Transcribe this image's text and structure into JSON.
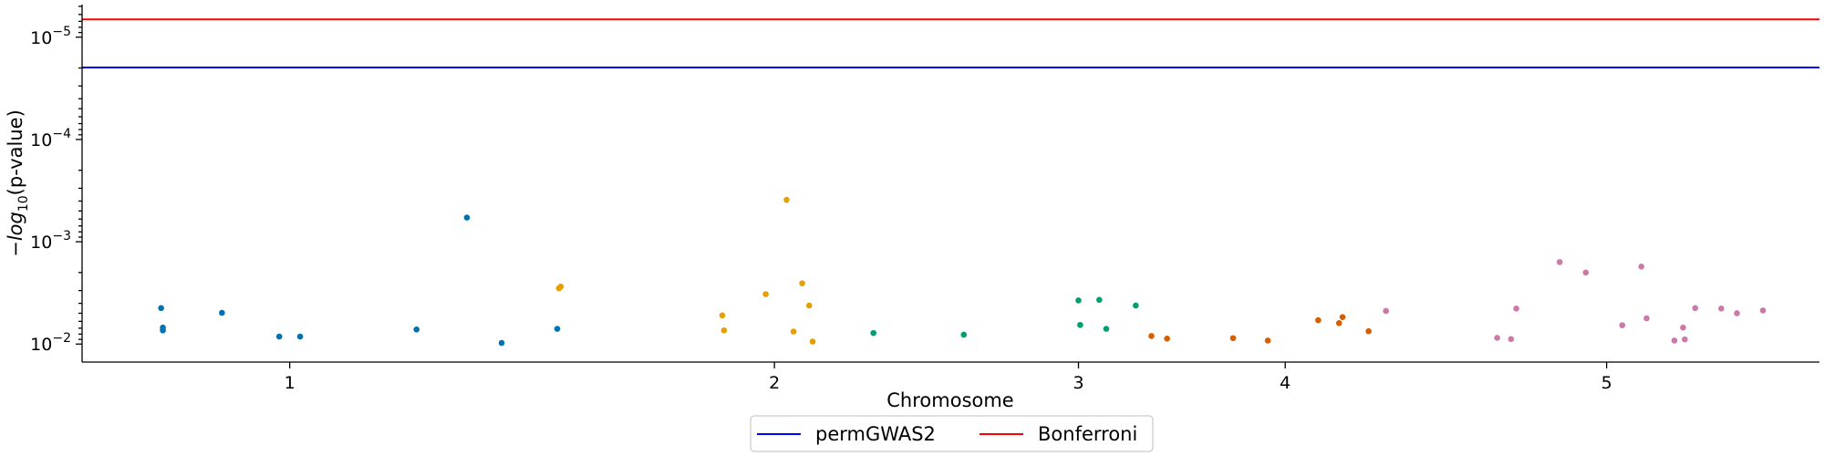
{
  "chart_data": {
    "type": "scatter",
    "title": "",
    "xlabel": "Chromosome",
    "ylabel_prefix": "−log",
    "ylabel_sub": "10",
    "ylabel_suffix": "(p-value)",
    "y_scale": "log",
    "y_direction": "inverted (smaller p-values higher)",
    "ylim": [
      0.015,
      4.8e-06
    ],
    "xlim": [
      0,
      1
    ],
    "grid": false,
    "y_ticks": [
      {
        "value": 1e-05,
        "base": "10",
        "exp": "−5"
      },
      {
        "value": 0.0001,
        "base": "10",
        "exp": "−4"
      },
      {
        "value": 0.001,
        "base": "10",
        "exp": "−3"
      },
      {
        "value": 0.01,
        "base": "10",
        "exp": "−2"
      }
    ],
    "x_ticks": [
      {
        "label": "1",
        "pos": 0.1195
      },
      {
        "label": "2",
        "pos": 0.3985
      },
      {
        "label": "3",
        "pos": 0.5735
      },
      {
        "label": "4",
        "pos": 0.6925
      },
      {
        "label": "5",
        "pos": 0.8775
      }
    ],
    "thresholds": [
      {
        "name": "Bonferroni",
        "p": 6.7e-06,
        "color": "#ff0000"
      },
      {
        "name": "permGWAS2",
        "p": 1.98e-05,
        "color": "#0000ff"
      }
    ],
    "legend": {
      "placement": "below-center",
      "items": [
        {
          "label": "permGWAS2",
          "color": "#0000ff"
        },
        {
          "label": "Bonferroni",
          "color": "#ff0000"
        }
      ]
    },
    "series": [
      {
        "name": "chr1",
        "color": "#0072b2",
        "points": [
          [
            0.0455,
            0.00445
          ],
          [
            0.0465,
            0.0069
          ],
          [
            0.0465,
            0.00735
          ],
          [
            0.0805,
            0.00495
          ],
          [
            0.1135,
            0.00845
          ],
          [
            0.1255,
            0.00845
          ],
          [
            0.1925,
            0.0072
          ],
          [
            0.2215,
            0.00058
          ],
          [
            0.2415,
            0.00975
          ],
          [
            0.2735,
            0.0071
          ]
        ]
      },
      {
        "name": "chr2",
        "color": "#e69f00",
        "points": [
          [
            0.2745,
            0.00285
          ],
          [
            0.2755,
            0.00275
          ],
          [
            0.3685,
            0.00525
          ],
          [
            0.3695,
            0.00735
          ],
          [
            0.3935,
            0.00325
          ],
          [
            0.4055,
            0.00039
          ],
          [
            0.4095,
            0.00755
          ],
          [
            0.4145,
            0.00255
          ],
          [
            0.4185,
            0.0042
          ],
          [
            0.4205,
            0.00945
          ]
        ]
      },
      {
        "name": "chr3",
        "color": "#009e73",
        "points": [
          [
            0.4555,
            0.0078
          ],
          [
            0.5075,
            0.0081
          ],
          [
            0.5735,
            0.00375
          ],
          [
            0.5745,
            0.0065
          ],
          [
            0.5855,
            0.0037
          ],
          [
            0.5895,
            0.0071
          ],
          [
            0.6065,
            0.0042
          ]
        ]
      },
      {
        "name": "chr4",
        "color": "#d55e00",
        "points": [
          [
            0.6155,
            0.00835
          ],
          [
            0.6245,
            0.00885
          ],
          [
            0.6625,
            0.00875
          ],
          [
            0.6825,
            0.00925
          ],
          [
            0.7115,
            0.00585
          ],
          [
            0.7235,
            0.00625
          ],
          [
            0.7255,
            0.00545
          ],
          [
            0.7405,
            0.0075
          ]
        ]
      },
      {
        "name": "chr5",
        "color": "#cc79a7",
        "points": [
          [
            0.7505,
            0.00475
          ],
          [
            0.8145,
            0.0087
          ],
          [
            0.8225,
            0.00895
          ],
          [
            0.8255,
            0.0045
          ],
          [
            0.8505,
            0.00158
          ],
          [
            0.8655,
            0.002
          ],
          [
            0.8865,
            0.00655
          ],
          [
            0.8975,
            0.00175
          ],
          [
            0.9005,
            0.0056
          ],
          [
            0.9165,
            0.00925
          ],
          [
            0.9215,
            0.0069
          ],
          [
            0.9225,
            0.009
          ],
          [
            0.9285,
            0.00445
          ],
          [
            0.9435,
            0.0045
          ],
          [
            0.9525,
            0.005
          ],
          [
            0.9675,
            0.0047
          ]
        ]
      }
    ]
  }
}
